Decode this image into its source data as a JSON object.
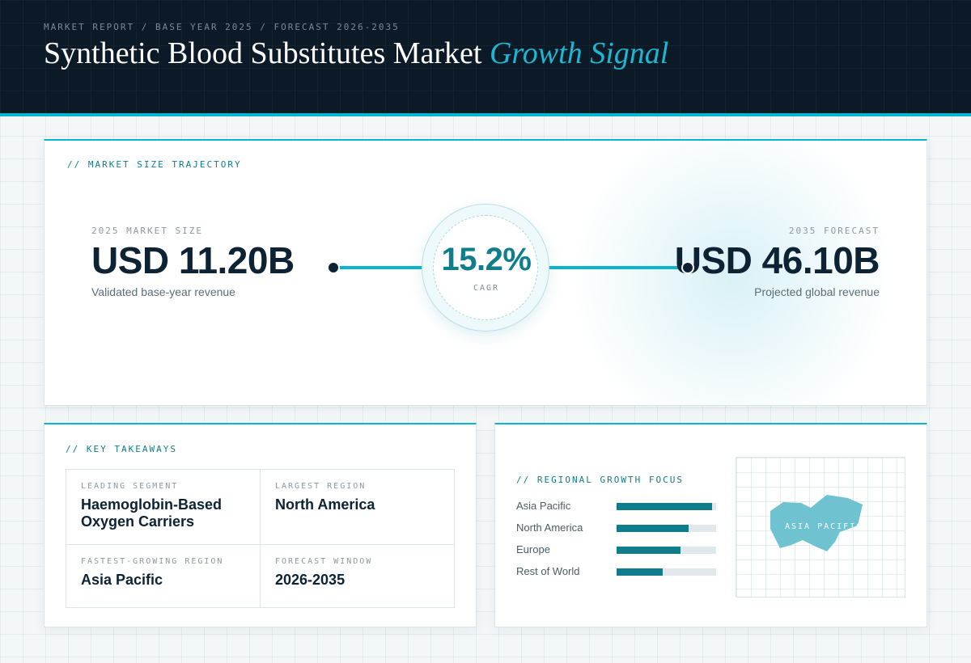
{
  "header": {
    "breadcrumb": "MARKET REPORT / BASE YEAR 2025 / FORECAST 2026-2035",
    "title_main": "Synthetic Blood Substitutes Market",
    "title_accent": "Growth Signal"
  },
  "trajectory": {
    "section_label": "// MARKET SIZE TRAJECTORY",
    "base": {
      "label": "2025 MARKET SIZE",
      "value": "USD 11.20B",
      "caption": "Validated base-year revenue"
    },
    "forecast": {
      "label": "2035 FORECAST",
      "value": "USD 46.10B",
      "caption": "Projected global revenue"
    },
    "cagr": {
      "value": "15.2%",
      "label": "CAGR"
    }
  },
  "takeaways": {
    "section_label": "// KEY TAKEAWAYS",
    "items": [
      {
        "label": "LEADING SEGMENT",
        "value": "Haemoglobin-Based Oxygen Carriers"
      },
      {
        "label": "LARGEST REGION",
        "value": "North America"
      },
      {
        "label": "FASTEST-GROWING REGION",
        "value": "Asia Pacific"
      },
      {
        "label": "FORECAST WINDOW",
        "value": "2026-2035"
      }
    ]
  },
  "regional": {
    "section_label": "// REGIONAL GROWTH FOCUS",
    "bars": [
      {
        "label": "Asia Pacific",
        "level": 0.96
      },
      {
        "label": "North America",
        "level": 0.72
      },
      {
        "label": "Europe",
        "level": 0.64
      },
      {
        "label": "Rest of World",
        "level": 0.46
      }
    ],
    "map_label": "ASIA PACIFIC"
  },
  "colors": {
    "accent": "#0bb5cf",
    "teal": "#0f7d8c",
    "navy": "#0b1a26",
    "map_fill": "#6fc3d1"
  }
}
